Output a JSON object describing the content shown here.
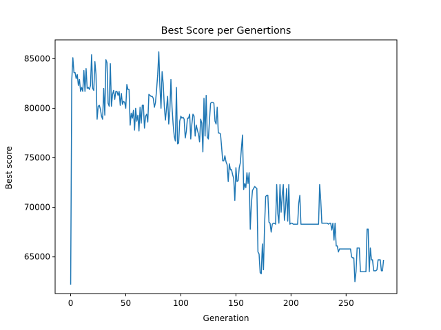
{
  "chart_data": {
    "type": "line",
    "title": "Best Score per Genertions",
    "xlabel": "Generation",
    "ylabel": "Best score",
    "xlim": [
      -14.1,
      296.1
    ],
    "ylim": [
      61300,
      86900
    ],
    "xticks": [
      0,
      50,
      100,
      150,
      200,
      250
    ],
    "yticks": [
      65000,
      70000,
      75000,
      80000,
      85000
    ],
    "grid": false,
    "line_color": "#1f77b4",
    "series": [
      {
        "values": [
          62200,
          82800,
          85100,
          83600,
          83600,
          83000,
          83400,
          82300,
          82900,
          81700,
          82100,
          81700,
          83800,
          81700,
          84000,
          82000,
          82100,
          81900,
          82300,
          85400,
          82000,
          81800,
          84700,
          83400,
          78900,
          80200,
          80300,
          79900,
          79200,
          78900,
          82000,
          79300,
          84900,
          84600,
          80500,
          80200,
          84500,
          80200,
          81400,
          81800,
          80900,
          81700,
          81700,
          81300,
          81700,
          80300,
          81500,
          80400,
          80700,
          80600,
          80000,
          82400,
          81900,
          81900,
          78300,
          79500,
          79000,
          79800,
          77800,
          80000,
          78700,
          79300,
          77700,
          80100,
          78500,
          80300,
          80300,
          78000,
          79200,
          79400,
          78600,
          81400,
          81300,
          81200,
          81200,
          81000,
          80100,
          80600,
          81900,
          83400,
          85700,
          82200,
          80000,
          83700,
          82500,
          80200,
          78800,
          80000,
          81200,
          78400,
          79700,
          82900,
          80100,
          78400,
          77200,
          76700,
          82100,
          76400,
          76500,
          78700,
          79200,
          79000,
          79100,
          78900,
          77000,
          77700,
          79000,
          79000,
          79400,
          76900,
          78400,
          79400,
          79200,
          77200,
          78300,
          77800,
          77400,
          76600,
          78900,
          78500,
          75600,
          81000,
          77200,
          81300,
          77100,
          76900,
          78800,
          80500,
          80600,
          80600,
          80500,
          78700,
          78400,
          80100,
          77500,
          77500,
          77400,
          76100,
          74700,
          74700,
          75200,
          74600,
          74300,
          72600,
          74400,
          73800,
          73800,
          73300,
          72900,
          70700,
          74000,
          72600,
          72700,
          74000,
          74500,
          76000,
          77300,
          71800,
          72400,
          72000,
          73500,
          72400,
          73500,
          67800,
          70300,
          71700,
          71900,
          72100,
          72000,
          71900,
          65500,
          65300,
          63400,
          63300,
          66300,
          63700,
          68200,
          71100,
          71200,
          71200,
          68500,
          68400,
          67500,
          68300,
          68400,
          68400,
          68300,
          72300,
          69400,
          68400,
          72300,
          69500,
          71200,
          72300,
          68700,
          69900,
          71900,
          68600,
          72300,
          68300,
          68400,
          68400,
          68300,
          68300,
          68300,
          68300,
          68300,
          70400,
          71200,
          68300,
          68300,
          68300,
          68300,
          68300,
          68300,
          68300,
          68300,
          68300,
          68300,
          68300,
          68300,
          68300,
          68300,
          68300,
          68300,
          68300,
          72300,
          70700,
          68400,
          68400,
          68400,
          68400,
          68400,
          68400,
          68300,
          68400,
          68400,
          67700,
          68400,
          66700,
          68400,
          66100,
          66100,
          65500,
          65800,
          65800,
          65800,
          65800,
          65800,
          65800,
          65800,
          65800,
          65800,
          65800,
          65800,
          65000,
          64900,
          64900,
          62500,
          63500,
          65900,
          65900,
          65900,
          63500,
          63500,
          63500,
          63500,
          63500,
          63500,
          67800,
          67800,
          63500,
          65900,
          64700,
          64700,
          63600,
          63600,
          63600,
          63700,
          64700,
          64700,
          64700,
          63600,
          63600,
          64700
        ]
      }
    ]
  }
}
